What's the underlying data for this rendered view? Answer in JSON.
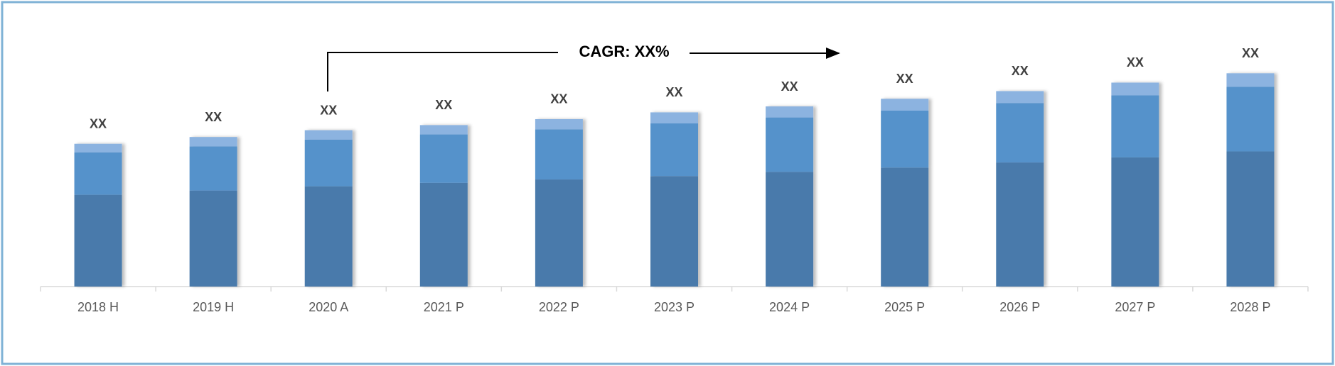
{
  "chart_data": {
    "type": "stacked_bar",
    "annotation": "CAGR: XX%",
    "categories": [
      "2018 H",
      "2019 H",
      "2020 A",
      "2021 P",
      "2022 P",
      "2023 P",
      "2024 P",
      "2025 P",
      "2026 P",
      "2027 P",
      "2028 P"
    ],
    "series": [
      {
        "color": "#4a7aab",
        "values": [
          108,
          113,
          118,
          122,
          126,
          130,
          135,
          140,
          146,
          152,
          159
        ]
      },
      {
        "color": "#5592cb",
        "values": [
          50,
          52,
          55,
          57,
          59,
          62,
          64,
          67,
          70,
          73,
          76
        ]
      },
      {
        "color": "#8cb3e0",
        "values": [
          10,
          11,
          11,
          11,
          12,
          13,
          13,
          14,
          14,
          15,
          16
        ],
        "value_labels": [
          "XX",
          "XX",
          "XX",
          "XX",
          "XX",
          "XX",
          "XX",
          "XX",
          "XX",
          "XX",
          "XX"
        ]
      }
    ]
  }
}
